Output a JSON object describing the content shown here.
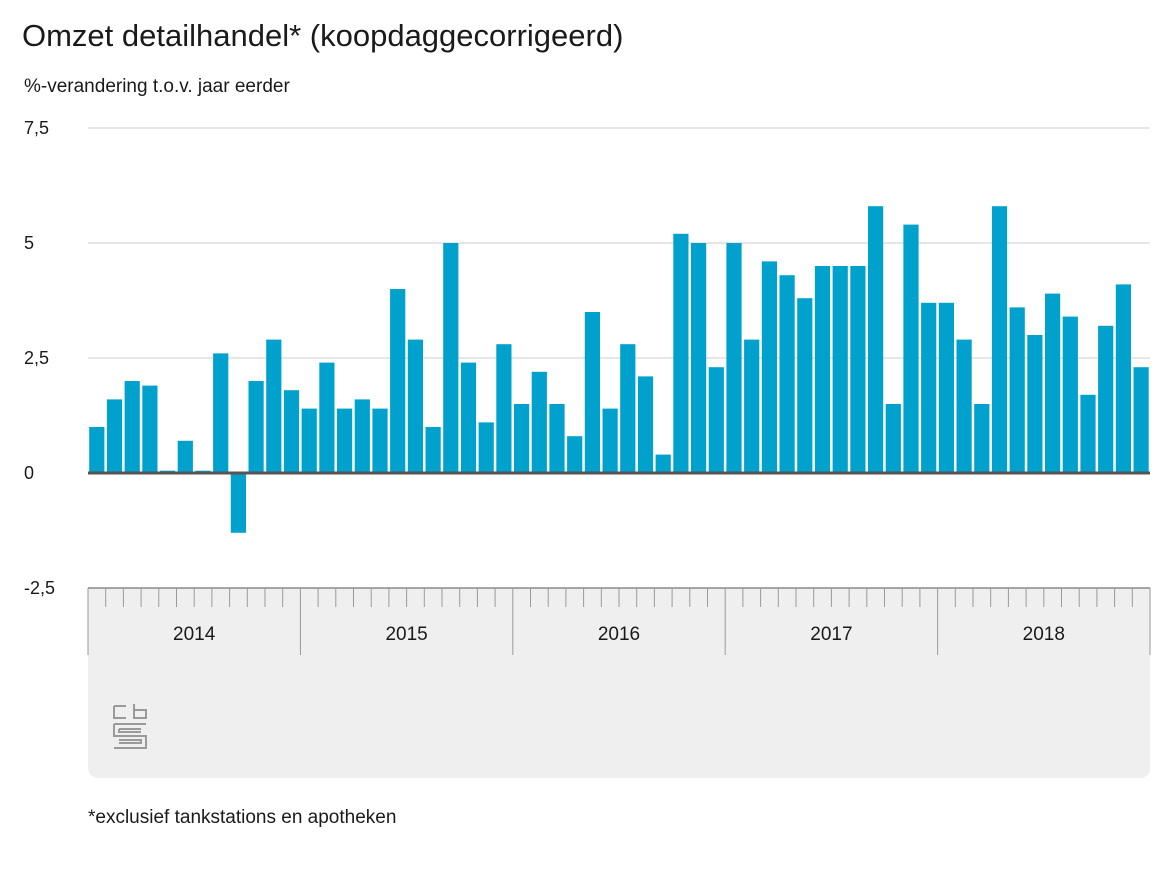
{
  "header": {
    "title": "Omzet detailhandel* (koopdaggecorrigeerd)",
    "subtitle": "%-verandering t.o.v. jaar eerder"
  },
  "footnote": "*exclusief tankstations en apotheken",
  "colors": {
    "bar": "#00a1cd",
    "gridline": "#cccccc",
    "baseline": "#555555",
    "panel": "#efefef"
  },
  "chart_data": {
    "type": "bar",
    "title": "Omzet detailhandel* (koopdaggecorrigeerd)",
    "ylabel": "%-verandering t.o.v. jaar eerder",
    "ylim": [
      -2.5,
      7.5
    ],
    "yticks": [
      7.5,
      5,
      2.5,
      0,
      -2.5
    ],
    "ytick_labels": [
      "7,5",
      "5",
      "2,5",
      "0",
      "-2,5"
    ],
    "years": [
      "2014",
      "2015",
      "2016",
      "2017",
      "2018"
    ],
    "months_per_year": 12,
    "grid": true,
    "series": [
      {
        "values": [
          1.0,
          1.6,
          2.0,
          1.9,
          0.05,
          0.7,
          0.05,
          2.6,
          -1.3,
          2.0,
          2.9,
          1.8,
          1.4,
          2.4,
          1.4,
          1.6,
          1.4,
          4.0,
          2.9,
          1.0,
          5.0,
          2.4,
          1.1,
          2.8,
          1.5,
          2.2,
          1.5,
          0.8,
          3.5,
          1.4,
          2.8,
          2.1,
          0.4,
          5.2,
          5.0,
          2.3,
          5.0,
          2.9,
          4.6,
          4.3,
          3.8,
          4.5,
          4.5,
          4.5,
          5.8,
          1.5,
          5.4,
          3.7,
          3.7,
          2.9,
          1.5,
          5.8,
          3.6,
          3.0,
          3.9,
          3.4,
          1.7,
          3.2,
          4.1,
          2.3
        ]
      }
    ]
  }
}
